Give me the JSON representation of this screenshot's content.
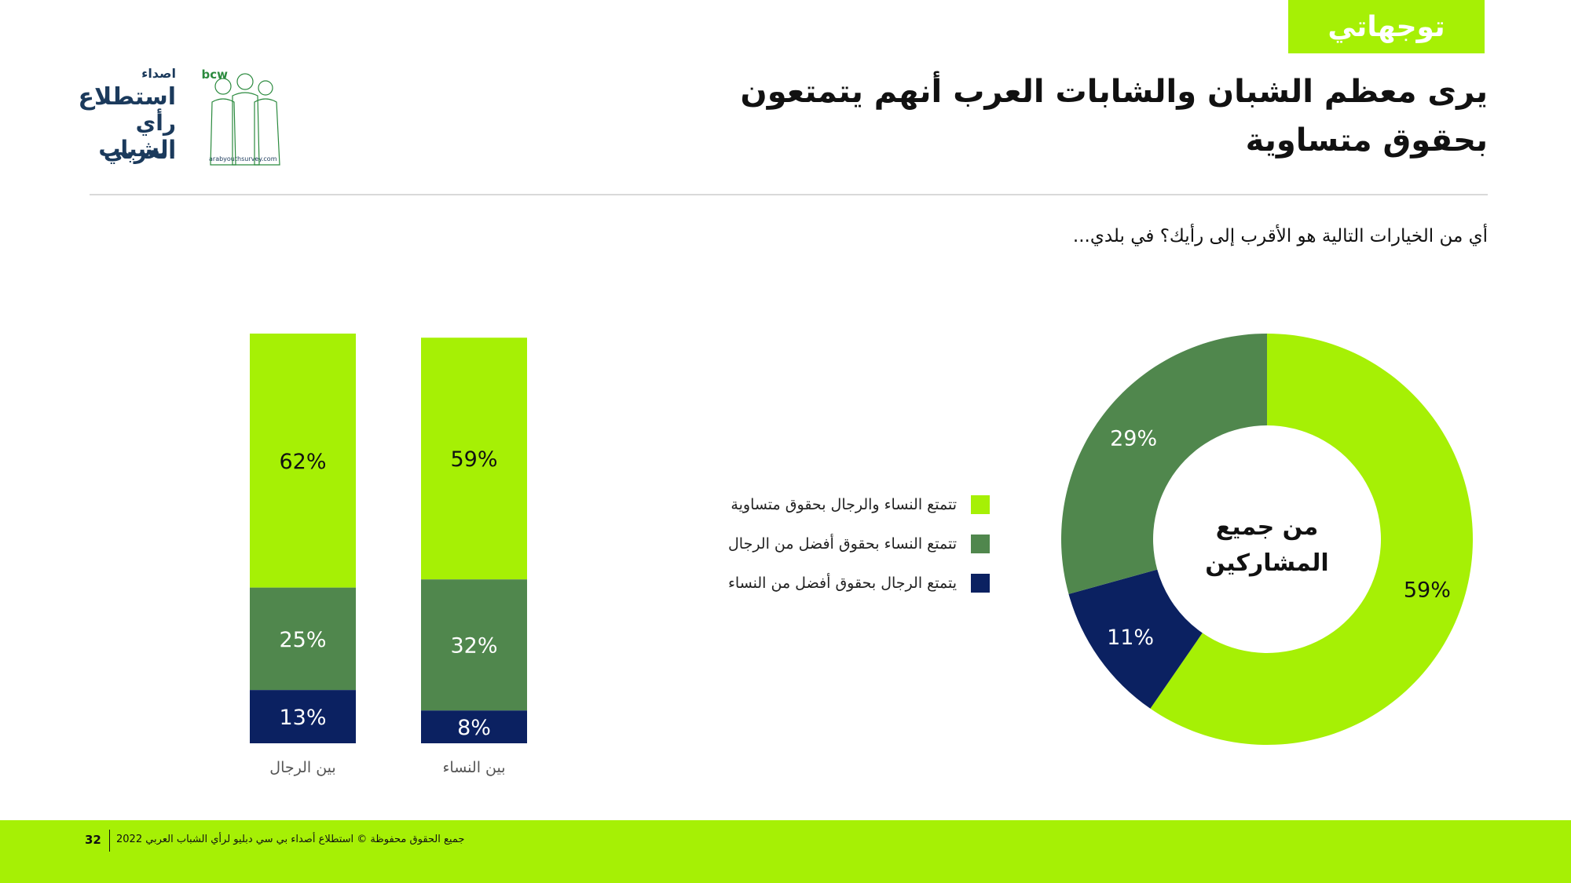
{
  "header": {
    "tag": "توجهاتي",
    "title": "يرى معظم الشبان والشابات العرب أنهم يتمتعون بحقوق متساوية",
    "question": "أي من الخيارات التالية هو الأقرب إلى رأيك؟ في بلدي..."
  },
  "logo": {
    "brand_bcw": "bcw",
    "brand_asda": "اصداء",
    "line1": "استطلاع",
    "line2": "رأي الشباب",
    "line3": "العربي",
    "url": "arabyouthsurvey.com"
  },
  "legend": {
    "items": [
      {
        "label": "تتمتع النساء والرجال بحقوق متساوية",
        "color": "#a6f005"
      },
      {
        "label": "تتمتع النساء بحقوق أفضل من الرجال",
        "color": "#50874d"
      },
      {
        "label": "يتمتع الرجال بحقوق أفضل من النساء",
        "color": "#0b2161"
      }
    ]
  },
  "chart_data": [
    {
      "type": "bar",
      "stacked": true,
      "categories": [
        "بين الرجال",
        "بين النساء"
      ],
      "series": [
        {
          "name": "تتمتع النساء والرجال بحقوق متساوية",
          "values": [
            62,
            59
          ],
          "color": "#a6f005"
        },
        {
          "name": "تتمتع النساء بحقوق أفضل من الرجال",
          "values": [
            25,
            32
          ],
          "color": "#50874d"
        },
        {
          "name": "يتمتع الرجال بحقوق أفضل من النساء",
          "values": [
            13,
            8
          ],
          "color": "#0b2161"
        }
      ],
      "value_labels": [
        [
          "62%",
          "25%",
          "13%"
        ],
        [
          "59%",
          "32%",
          "8%"
        ]
      ],
      "ylim": [
        0,
        100
      ],
      "grid": false
    },
    {
      "type": "pie",
      "donut": true,
      "center_label": [
        "من جميع",
        "المشاركين"
      ],
      "slices": [
        {
          "label": "تتمتع النساء والرجال بحقوق متساوية",
          "value": 59,
          "text": "59%",
          "color": "#a6f005"
        },
        {
          "label": "يتمتع الرجال بحقوق أفضل من النساء",
          "value": 11,
          "text": "11%",
          "color": "#0b2161"
        },
        {
          "label": "تتمتع النساء بحقوق أفضل من الرجال",
          "value": 29,
          "text": "29%",
          "color": "#50874d"
        }
      ],
      "legend": "left"
    }
  ],
  "footer": {
    "page": "32",
    "text": "جميع الحقوق محفوظة © استطلاع أصداء بي سي دبليو لرأي الشباب العربي 2022"
  }
}
